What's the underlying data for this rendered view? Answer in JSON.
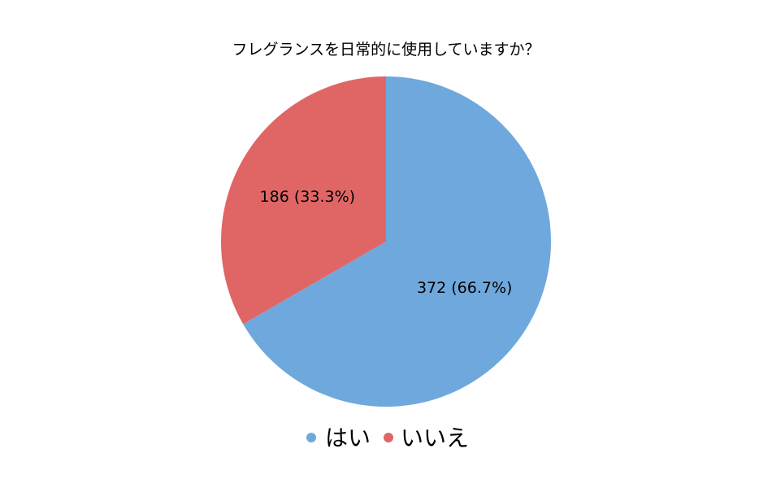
{
  "chart_data": {
    "type": "pie",
    "title": "フレグランスを日常的に使用していますか？",
    "start_angle": "top",
    "direction": "clockwise",
    "slices": [
      {
        "label": "はい",
        "value": 372,
        "percent": 66.7,
        "data_label": "372 (66.7%)",
        "color": "#6fa8dc"
      },
      {
        "label": "いいえ",
        "value": 186,
        "percent": 33.3,
        "data_label": "186 (33.3%)",
        "color": "#e06666"
      }
    ],
    "legend_position": "bottom"
  }
}
